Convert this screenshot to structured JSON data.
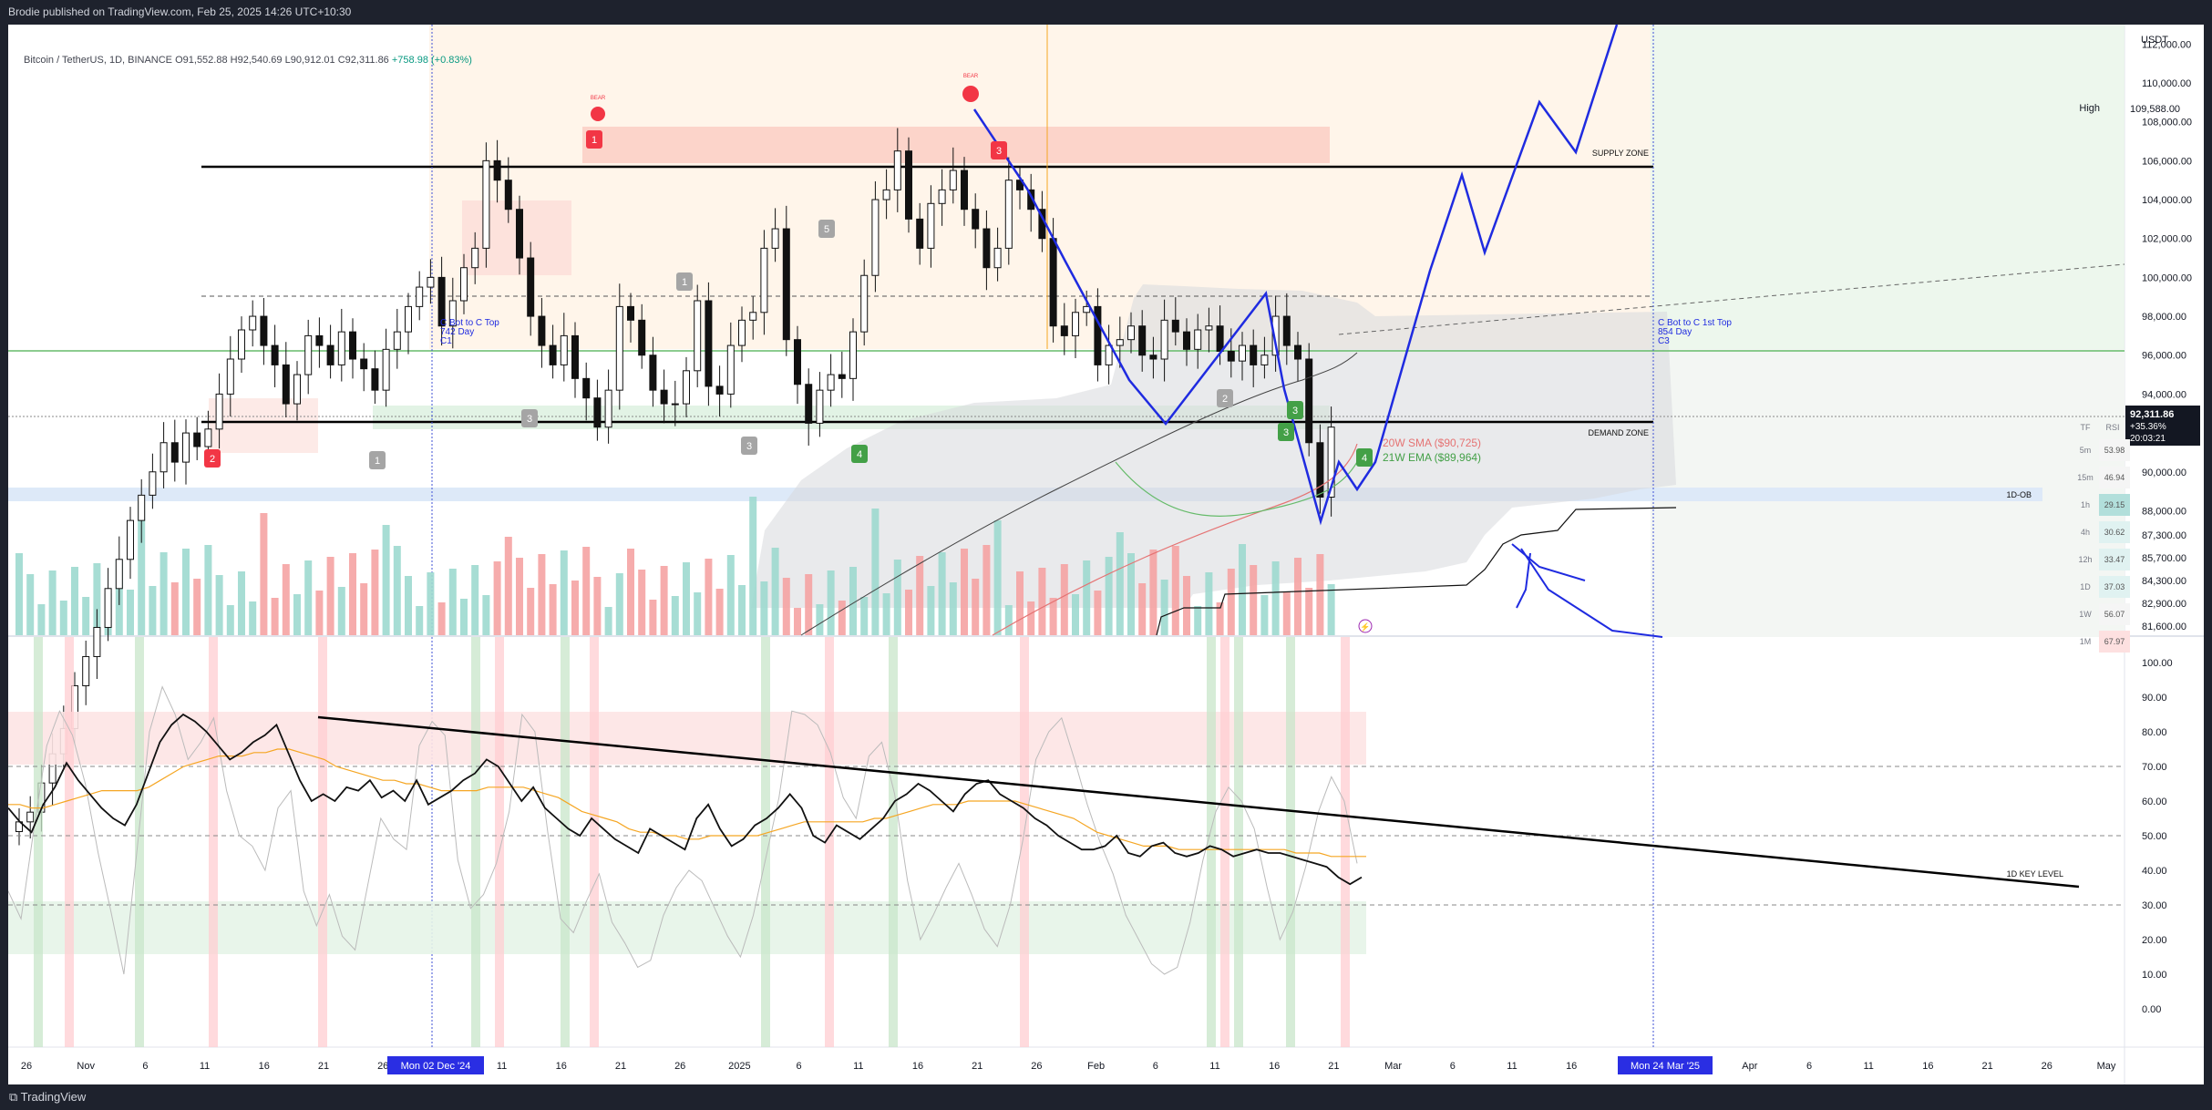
{
  "header": {
    "publisher_text": "Brodie published on TradingView.com, Feb 25, 2025 14:26 UTC+10:30"
  },
  "footer": {
    "logo_text": "TradingView"
  },
  "symbol": {
    "title": "Bitcoin / TetherUS, 1D, BINANCE",
    "open": "O91,552.88",
    "high": "H92,540.69",
    "low": "L90,912.01",
    "close": "C92,311.86",
    "change": "+758.98 (+0.83%)"
  },
  "price_axis": {
    "currency": "USDT",
    "ticks": [
      "112,000.00",
      "110,000.00",
      "108,000.00",
      "106,000.00",
      "104,000.00",
      "102,000.00",
      "100,000.00",
      "98,000.00",
      "96,000.00",
      "94,000.00",
      "92,000.00",
      "90,000.00",
      "88,000.00",
      "87,300.00",
      "85,700.00",
      "84,300.00",
      "82,900.00",
      "81,600.00"
    ],
    "high_label": "High",
    "high_value": "109,588.00",
    "last_price": "92,311.86",
    "last_change": "+35.36%",
    "countdown": "20:03:21"
  },
  "rsi_axis": {
    "ticks": [
      "100.00",
      "90.00",
      "80.00",
      "70.00",
      "60.00",
      "50.00",
      "40.00",
      "30.00",
      "20.00",
      "10.00",
      "0.00"
    ]
  },
  "time_axis": {
    "ticks": [
      "26",
      "Nov",
      "6",
      "11",
      "16",
      "21",
      "26",
      "6",
      "11",
      "16",
      "21",
      "26",
      "2025",
      "6",
      "11",
      "16",
      "21",
      "26",
      "Feb",
      "6",
      "11",
      "16",
      "21",
      "Mar",
      "6",
      "11",
      "16",
      "21",
      "26",
      "Apr",
      "6",
      "11",
      "16",
      "21",
      "26",
      "May"
    ],
    "cursor_left": "Mon 02 Dec '24",
    "cursor_right": "Mon 24 Mar '25"
  },
  "annotations": {
    "supply_zone": "SUPPLY ZONE",
    "demand_zone": "DEMAND ZONE",
    "ob_label": "1D-OB",
    "key_level": "1D KEY LEVEL",
    "sma_label": "20W SMA ($90,725)",
    "ema_label": "21W EMA ($89,964)",
    "cycle_left_1": "C Bot to C Top",
    "cycle_left_2": "742 Day",
    "cycle_left_3": "C1",
    "cycle_right_1": "C Bot to C 1st Top",
    "cycle_right_2": "854 Day",
    "cycle_right_3": "C3",
    "bear_1": "BEAR",
    "bear_2": "BEAR",
    "markers": [
      "1",
      "2",
      "3",
      "1",
      "3",
      "1",
      "3",
      "4",
      "5",
      "3",
      "2",
      "3",
      "4"
    ]
  },
  "rsi_table": {
    "header_tf": "TF",
    "header_rsi": "RSI",
    "rows": [
      {
        "tf": "5m",
        "rsi": "53.98",
        "color": "#f5f5f5"
      },
      {
        "tf": "15m",
        "rsi": "46.94",
        "color": "#f5f5f5"
      },
      {
        "tf": "1h",
        "rsi": "29.15",
        "color": "#b2dfdb"
      },
      {
        "tf": "4h",
        "rsi": "30.62",
        "color": "#e0f2f1"
      },
      {
        "tf": "12h",
        "rsi": "33.47",
        "color": "#e0f2f1"
      },
      {
        "tf": "1D",
        "rsi": "37.03",
        "color": "#e0f2f1"
      },
      {
        "tf": "1W",
        "rsi": "56.07",
        "color": "#f5f5f5"
      },
      {
        "tf": "1M",
        "rsi": "67.97",
        "color": "#fde0e0"
      }
    ]
  },
  "chart_data": [
    {
      "type": "candlestick",
      "title": "Bitcoin / TetherUS, 1D, BINANCE",
      "ylabel": "USDT",
      "ylim": [
        81600,
        113000
      ],
      "close_series_approx": [
        72000,
        72500,
        74000,
        75500,
        76800,
        79000,
        80500,
        82000,
        84000,
        85500,
        87500,
        88800,
        90000,
        91500,
        90500,
        92000,
        91300,
        92200,
        94000,
        95800,
        97300,
        98000,
        96500,
        95500,
        93500,
        95000,
        97000,
        96500,
        95500,
        97200,
        95800,
        95300,
        94200,
        96300,
        97200,
        98500,
        99500,
        100000,
        97500,
        98800,
        100500,
        101500,
        106000,
        105000,
        103500,
        101000,
        98000,
        96500,
        95500,
        97000,
        94800,
        93800,
        92300,
        94200,
        98500,
        97800,
        96000,
        94200,
        93500,
        93500,
        95200,
        98800,
        94400,
        94000,
        96500,
        97800,
        98200,
        101500,
        102500,
        96800,
        94500,
        92500,
        94200,
        95000,
        94800,
        97200,
        100100,
        104000,
        104500,
        106500,
        103000,
        101500,
        103800,
        104500,
        105500,
        103500,
        102500,
        100500,
        101500,
        105000,
        104500,
        103500,
        102000,
        97500,
        97000,
        98200,
        98500,
        95500,
        96500,
        96800,
        97500,
        96000,
        95800,
        97800,
        97200,
        96300,
        97300,
        97500,
        96200,
        95700,
        96500,
        95500,
        96000,
        98000,
        96500,
        95800,
        91500,
        88700,
        92300
      ],
      "levels": {
        "supply_zone": 106000,
        "demand_zone": 92000,
        "ob_zone": [
          88000,
          88800
        ],
        "dashed_level": 98700,
        "green_line": 96000,
        "high": 109588
      },
      "series": [
        {
          "name": "20W SMA",
          "last": 90725
        },
        {
          "name": "21W EMA",
          "last": 89964
        }
      ]
    },
    {
      "type": "line",
      "title": "RSI",
      "ylim": [
        0,
        100
      ],
      "hlines": [
        70,
        50,
        30
      ],
      "series": [
        {
          "name": "RSI",
          "values": [
            58,
            54,
            51,
            59,
            64,
            71,
            66,
            62,
            58,
            55,
            53,
            59,
            68,
            77,
            82,
            85,
            83,
            80,
            76,
            72,
            74,
            77,
            79,
            82,
            74,
            66,
            60,
            62,
            60,
            64,
            63,
            66,
            61,
            63,
            60,
            66,
            59,
            61,
            63,
            66,
            68,
            72,
            70,
            65,
            60,
            64,
            58,
            55,
            52,
            50,
            55,
            52,
            49,
            47,
            45,
            52,
            50,
            48,
            46,
            55,
            59,
            52,
            47,
            49,
            53,
            55,
            58,
            62,
            58,
            50,
            48,
            53,
            51,
            49,
            52,
            55,
            60,
            62,
            65,
            63,
            60,
            57,
            62,
            65,
            66,
            62,
            60,
            58,
            55,
            53,
            50,
            48,
            46,
            46,
            47,
            50,
            45,
            44,
            47,
            48,
            45,
            44,
            45,
            47,
            46,
            44,
            45,
            46,
            45,
            45,
            44,
            43,
            42,
            41,
            38,
            36,
            38
          ]
        },
        {
          "name": "RSI MA",
          "values": [
            59,
            59,
            58,
            58,
            59,
            60,
            61,
            62,
            63,
            63,
            63,
            63,
            64,
            66,
            68,
            70,
            71,
            72,
            73,
            73,
            73,
            74,
            74,
            75,
            75,
            74,
            73,
            72,
            70,
            69,
            68,
            67,
            66,
            66,
            65,
            65,
            64,
            63,
            63,
            63,
            63,
            64,
            64,
            64,
            64,
            63,
            62,
            61,
            59,
            57,
            56,
            55,
            54,
            52,
            51,
            51,
            50,
            50,
            49,
            49,
            50,
            50,
            50,
            50,
            50,
            51,
            52,
            53,
            54,
            54,
            54,
            54,
            54,
            54,
            55,
            55,
            56,
            57,
            58,
            59,
            59,
            59,
            60,
            60,
            60,
            60,
            60,
            59,
            58,
            57,
            56,
            55,
            53,
            51,
            50,
            49,
            48,
            47,
            47,
            47,
            46,
            46,
            46,
            46,
            46,
            46,
            46,
            46,
            46,
            46,
            45,
            45,
            45,
            44,
            44,
            44,
            44
          ]
        },
        {
          "name": "Stoch",
          "values": [
            34,
            26,
            52,
            76,
            86,
            79,
            65,
            45,
            28,
            10,
            45,
            80,
            93,
            85,
            72,
            77,
            84,
            63,
            50,
            47,
            40,
            58,
            63,
            34,
            24,
            33,
            21,
            17,
            36,
            55,
            49,
            46,
            76,
            83,
            79,
            43,
            29,
            33,
            42,
            57,
            85,
            80,
            51,
            26,
            22,
            31,
            39,
            25,
            19,
            12,
            14,
            27,
            35,
            40,
            37,
            29,
            21,
            15,
            27,
            44,
            61,
            86,
            85,
            82,
            74,
            61,
            55,
            73,
            77,
            62,
            37,
            20,
            27,
            35,
            42,
            33,
            23,
            18,
            30,
            49,
            72,
            80,
            84,
            72,
            59,
            48,
            39,
            27,
            20,
            13,
            10,
            12,
            25,
            43,
            57,
            64,
            60,
            52,
            35,
            20,
            28,
            41,
            57,
            67,
            60,
            42
          ]
        }
      ]
    }
  ]
}
